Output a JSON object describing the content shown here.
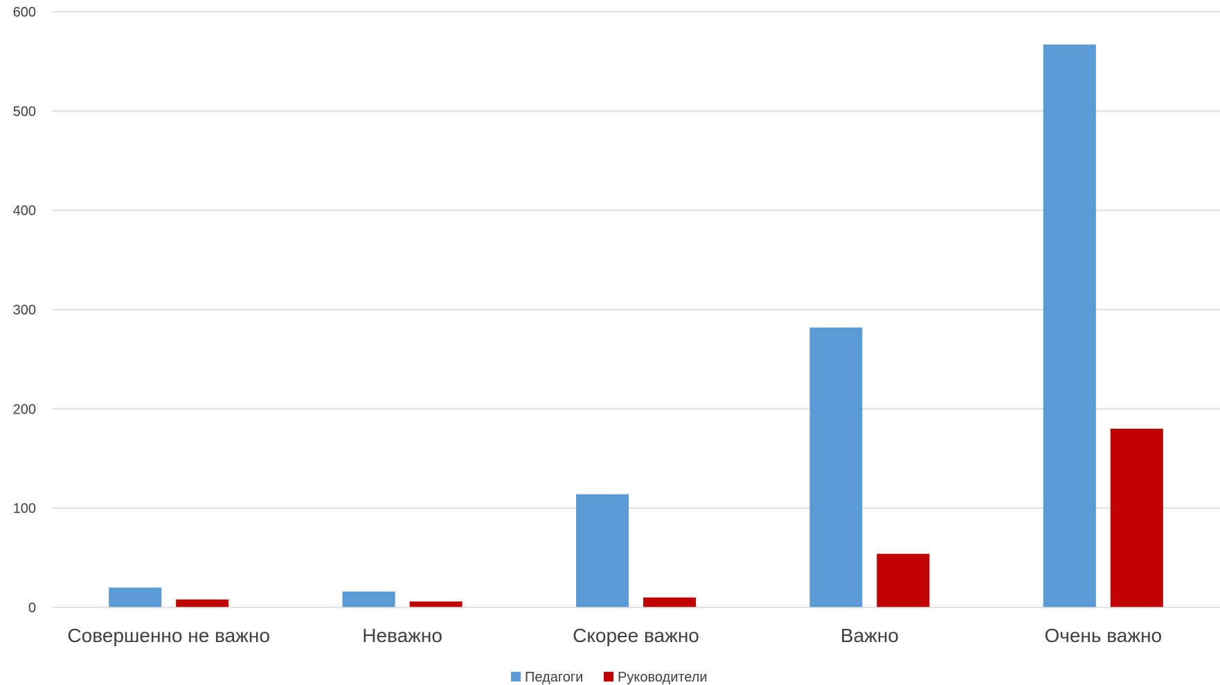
{
  "chart_data": {
    "type": "bar",
    "title": "",
    "xlabel": "",
    "ylabel": "",
    "categories": [
      "Совершенно не важно",
      "Неважно",
      "Скорее важно",
      "Важно",
      "Очень важно"
    ],
    "series": [
      {
        "name": "Педагоги",
        "color": "#5b9bd5",
        "values": [
          20,
          16,
          114,
          282,
          567
        ]
      },
      {
        "name": "Руководители",
        "color": "#c00000",
        "values": [
          8,
          6,
          10,
          54,
          180
        ]
      }
    ],
    "ylim": [
      0,
      600
    ],
    "yticks": [
      0,
      100,
      200,
      300,
      400,
      500,
      600
    ],
    "grid": true,
    "legend_position": "bottom"
  }
}
